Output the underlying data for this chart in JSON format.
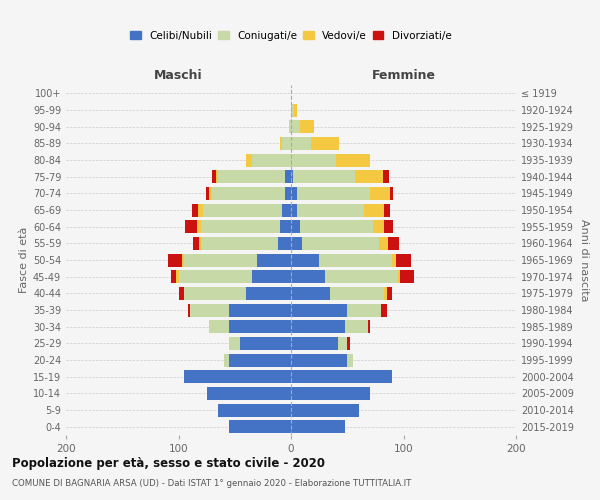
{
  "age_groups": [
    "0-4",
    "5-9",
    "10-14",
    "15-19",
    "20-24",
    "25-29",
    "30-34",
    "35-39",
    "40-44",
    "45-49",
    "50-54",
    "55-59",
    "60-64",
    "65-69",
    "70-74",
    "75-79",
    "80-84",
    "85-89",
    "90-94",
    "95-99",
    "100+"
  ],
  "birth_years": [
    "2015-2019",
    "2010-2014",
    "2005-2009",
    "2000-2004",
    "1995-1999",
    "1990-1994",
    "1985-1989",
    "1980-1984",
    "1975-1979",
    "1970-1974",
    "1965-1969",
    "1960-1964",
    "1955-1959",
    "1950-1954",
    "1945-1949",
    "1940-1944",
    "1935-1939",
    "1930-1934",
    "1925-1929",
    "1920-1924",
    "≤ 1919"
  ],
  "maschi": {
    "celibi": [
      55,
      65,
      75,
      95,
      55,
      45,
      55,
      55,
      40,
      35,
      30,
      12,
      10,
      8,
      5,
      5,
      0,
      0,
      0,
      0,
      0
    ],
    "coniugati": [
      0,
      0,
      0,
      0,
      5,
      10,
      18,
      35,
      55,
      65,
      65,
      68,
      70,
      70,
      65,
      60,
      35,
      8,
      2,
      0,
      0
    ],
    "vedovi": [
      0,
      0,
      0,
      0,
      0,
      0,
      0,
      0,
      0,
      2,
      2,
      2,
      4,
      5,
      3,
      2,
      5,
      2,
      0,
      0,
      0
    ],
    "divorziati": [
      0,
      0,
      0,
      0,
      0,
      0,
      0,
      2,
      5,
      5,
      12,
      5,
      10,
      5,
      3,
      3,
      0,
      0,
      0,
      0,
      0
    ]
  },
  "femmine": {
    "nubili": [
      48,
      60,
      70,
      90,
      50,
      42,
      48,
      50,
      35,
      30,
      25,
      10,
      8,
      5,
      5,
      2,
      0,
      0,
      0,
      0,
      0
    ],
    "coniugate": [
      0,
      0,
      0,
      0,
      5,
      8,
      20,
      30,
      48,
      65,
      65,
      68,
      65,
      60,
      65,
      55,
      40,
      18,
      8,
      3,
      0
    ],
    "vedove": [
      0,
      0,
      0,
      0,
      0,
      0,
      0,
      0,
      2,
      2,
      3,
      8,
      10,
      18,
      18,
      25,
      30,
      25,
      12,
      2,
      0
    ],
    "divorziate": [
      0,
      0,
      0,
      0,
      0,
      2,
      2,
      5,
      5,
      12,
      14,
      10,
      8,
      5,
      3,
      5,
      0,
      0,
      0,
      0,
      0
    ]
  },
  "colors": {
    "celibi": "#4472c4",
    "coniugati": "#c8d9a8",
    "vedovi": "#f5c842",
    "divorziati": "#cc1111"
  },
  "title": "Popolazione per età, sesso e stato civile - 2020",
  "subtitle": "COMUNE DI BAGNARIA ARSA (UD) - Dati ISTAT 1° gennaio 2020 - Elaborazione TUTTITALIA.IT",
  "xlabel_left": "Maschi",
  "xlabel_right": "Femmine",
  "ylabel_left": "Fasce di età",
  "ylabel_right": "Anni di nascita",
  "xlim": [
    -200,
    200
  ],
  "xticks": [
    -200,
    -100,
    0,
    100,
    200
  ],
  "xtick_labels": [
    "200",
    "100",
    "0",
    "100",
    "200"
  ],
  "legend_labels": [
    "Celibi/Nubili",
    "Coniugati/e",
    "Vedovi/e",
    "Divorziati/e"
  ],
  "background_color": "#f5f5f5"
}
